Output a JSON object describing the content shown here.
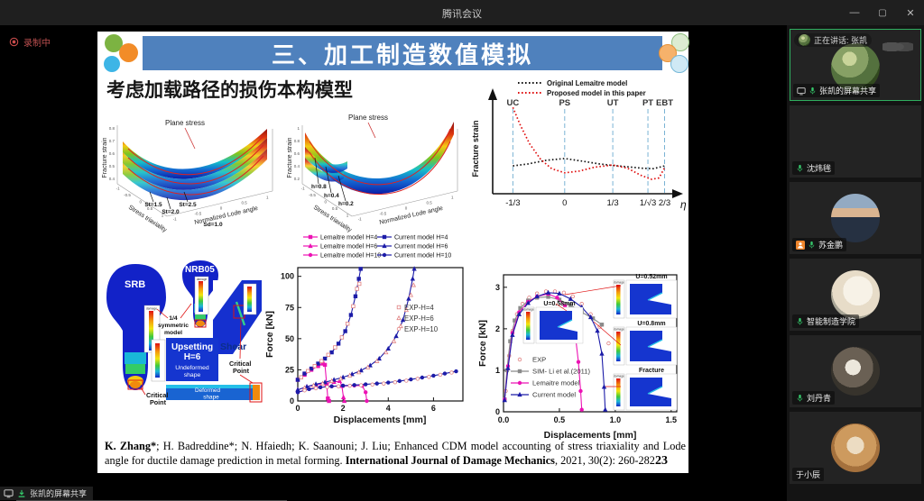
{
  "window": {
    "title": "腾讯会议"
  },
  "stage": {
    "recording_label": "录制中",
    "share_label": "张凯的屏幕共享"
  },
  "sidebar": {
    "tiles": [
      {
        "header": "正在讲话: 张凯",
        "footer": "张凯的屏幕共享"
      },
      {
        "name": "沈炜毪"
      },
      {
        "name": "苏金鹏",
        "host": true
      },
      {
        "name": "智能制造学院"
      },
      {
        "name": "刘丹青"
      },
      {
        "name": "于小辰"
      }
    ]
  },
  "slide": {
    "banner_title": "三、加工制造数值模拟",
    "subtitle": "考虑加载路径的损伤本构模型",
    "page_number": "23",
    "citation": {
      "authors_bold": "K. Zhang*",
      "middle": "; H. Badreddine*; N. Hfaiedh; K. Saanouni; J. Liu; Enhanced CDM model accounting of stress triaxiality and Lode angle for ductile damage prediction in metal forming. ",
      "journal_bold": "International Journal of Damage Mechanics",
      "tail": ", 2021, 30(2): 260-282"
    },
    "surfaces": {
      "left": {
        "zlabel": "Fracture strain",
        "xlabel": "Stress triaxiality",
        "ylabel": "Normalized Lode angle",
        "annotation": "Plane stress",
        "zticks": [
          "0.8",
          "0.7",
          "0.6",
          "0.5",
          "0.4"
        ],
        "xticks": [
          "-1",
          "-0.5",
          "0",
          "0.5",
          "1"
        ],
        "yticks": [
          "-1",
          "-0.5",
          "0",
          "0.5",
          "1"
        ],
        "tags": [
          "St=1.5",
          "St=2.0",
          "St=2.5"
        ],
        "bottom_tag": "Sd=1.0"
      },
      "right": {
        "zlabel": "Fracture strain",
        "xlabel": "Stress triaxiality",
        "ylabel": "Normalized Lode angle",
        "annotation": "Plane stress",
        "zticks": [
          "1",
          "0.8",
          "0.6",
          "0.4",
          "0.2"
        ],
        "xticks": [
          "-1",
          "-0.5",
          "0",
          "0.5",
          "1"
        ],
        "yticks": [
          "-1",
          "-0.5",
          "0",
          "0.5",
          "1"
        ],
        "tags": [
          "h=0.8",
          "h=0.4",
          "h=0.2"
        ]
      }
    },
    "specimens": {
      "srb": "SRB",
      "nrb": "NRB05",
      "shear": "Shear",
      "sym_model": [
        "1/4",
        "symmetric",
        "model"
      ],
      "upsetting": [
        "Upsetting",
        "H=6"
      ],
      "undeformed": [
        "Undeformed",
        "shape"
      ],
      "deformed": [
        "Deformed",
        "shape"
      ],
      "critical": [
        "Critical",
        "Point"
      ],
      "damage_label": "damage"
    }
  },
  "chart_data": [
    {
      "id": "fs",
      "type": "line",
      "ylabel": "Fracture strain",
      "xlabel": "η",
      "legend_position": "top",
      "guides": [
        {
          "label": "UC",
          "tick": "-1/3",
          "x": 0.08
        },
        {
          "label": "PS",
          "tick": "0",
          "x": 0.36
        },
        {
          "label": "UT",
          "tick": "1/3",
          "x": 0.62
        },
        {
          "label": "PT",
          "tick": "1/√3",
          "x": 0.81
        },
        {
          "label": "EBT",
          "tick": "2/3",
          "x": 0.9
        }
      ],
      "series": [
        {
          "name": "Original Lemaitre model",
          "color": "#161616",
          "points": [
            [
              0.08,
              0.3
            ],
            [
              0.16,
              0.32
            ],
            [
              0.26,
              0.36
            ],
            [
              0.36,
              0.38
            ],
            [
              0.46,
              0.35
            ],
            [
              0.55,
              0.32
            ],
            [
              0.62,
              0.305
            ],
            [
              0.7,
              0.29
            ],
            [
              0.78,
              0.275
            ],
            [
              0.84,
              0.27
            ],
            [
              0.9,
              0.3
            ]
          ]
        },
        {
          "name": "Proposed model in this paper",
          "color": "#e01212",
          "points": [
            [
              0.08,
              0.93
            ],
            [
              0.12,
              0.74
            ],
            [
              0.17,
              0.54
            ],
            [
              0.23,
              0.37
            ],
            [
              0.29,
              0.27
            ],
            [
              0.36,
              0.225
            ],
            [
              0.44,
              0.245
            ],
            [
              0.52,
              0.285
            ],
            [
              0.62,
              0.31
            ],
            [
              0.7,
              0.275
            ],
            [
              0.77,
              0.2
            ],
            [
              0.83,
              0.155
            ],
            [
              0.87,
              0.17
            ],
            [
              0.9,
              0.28
            ]
          ]
        }
      ]
    },
    {
      "id": "fd1",
      "type": "line",
      "xlabel": "Displacements [mm]",
      "ylabel": "Force [kN]",
      "xlim": [
        0,
        7.3
      ],
      "ylim": [
        0,
        107
      ],
      "xticks": [
        0,
        2,
        4,
        6
      ],
      "yticks": [
        0,
        25,
        50,
        75,
        100
      ],
      "series": [
        {
          "name": "Lemaitre model H=4",
          "color": "#ec13b4",
          "marker": "s",
          "points": [
            [
              0,
              17
            ],
            [
              0.3,
              21
            ],
            [
              0.6,
              25
            ],
            [
              0.9,
              28
            ],
            [
              1.1,
              30
            ],
            [
              1.2,
              29
            ],
            [
              1.28,
              13
            ],
            [
              1.33,
              2
            ],
            [
              1.38,
              0
            ]
          ]
        },
        {
          "name": "Lemaitre model H=6",
          "color": "#ec13b4",
          "marker": "t",
          "points": [
            [
              0,
              9
            ],
            [
              0.4,
              11.5
            ],
            [
              0.8,
              13
            ],
            [
              1.2,
              14.2
            ],
            [
              1.6,
              15.2
            ],
            [
              1.85,
              16
            ],
            [
              1.95,
              12
            ],
            [
              2.02,
              3
            ],
            [
              2.06,
              0
            ]
          ]
        },
        {
          "name": "Lemaitre model H=10",
          "color": "#ec13b4",
          "marker": "c",
          "points": [
            [
              0,
              7
            ],
            [
              0.5,
              9.5
            ],
            [
              1,
              11
            ],
            [
              1.5,
              11.7
            ],
            [
              2,
              12.1
            ],
            [
              2.5,
              12.4
            ],
            [
              2.85,
              12.2
            ],
            [
              3.0,
              7
            ],
            [
              3.05,
              0
            ]
          ]
        },
        {
          "name": "Current model H=4",
          "color": "#1c1ca8",
          "marker": "s",
          "points": [
            [
              0,
              17
            ],
            [
              0.3,
              22
            ],
            [
              0.6,
              26
            ],
            [
              0.9,
              30
            ],
            [
              1.2,
              34
            ],
            [
              1.5,
              39
            ],
            [
              1.8,
              46
            ],
            [
              2.1,
              56
            ],
            [
              2.35,
              69
            ],
            [
              2.55,
              84
            ],
            [
              2.7,
              98
            ],
            [
              2.78,
              106
            ]
          ]
        },
        {
          "name": "Current model H=6",
          "color": "#1c1ca8",
          "marker": "t",
          "points": [
            [
              0,
              9
            ],
            [
              0.4,
              11.5
            ],
            [
              0.8,
              13.5
            ],
            [
              1.2,
              15
            ],
            [
              1.6,
              17
            ],
            [
              2,
              19
            ],
            [
              2.4,
              21.5
            ],
            [
              2.8,
              24.5
            ],
            [
              3.2,
              28.5
            ],
            [
              3.6,
              34
            ],
            [
              4,
              42
            ],
            [
              4.35,
              52
            ],
            [
              4.65,
              65
            ],
            [
              4.9,
              82
            ],
            [
              5.08,
              98
            ],
            [
              5.15,
              106
            ]
          ]
        },
        {
          "name": "Current model H=10",
          "color": "#1c1ca8",
          "marker": "c",
          "points": [
            [
              0,
              7
            ],
            [
              0.5,
              9.5
            ],
            [
              1,
              11
            ],
            [
              1.5,
              11.8
            ],
            [
              2,
              12.3
            ],
            [
              2.5,
              12.8
            ],
            [
              3,
              13.3
            ],
            [
              3.5,
              14
            ],
            [
              4,
              14.8
            ],
            [
              4.5,
              16
            ],
            [
              5,
              17.3
            ],
            [
              5.5,
              18.8
            ],
            [
              6,
              20.3
            ],
            [
              6.5,
              22
            ],
            [
              7,
              23.8
            ]
          ]
        },
        {
          "name": "EXP-H=4",
          "color": "#e08080",
          "marker": "os",
          "scatter": true,
          "points": [
            [
              0.15,
              19
            ],
            [
              0.45,
              24
            ],
            [
              0.75,
              28
            ],
            [
              1.05,
              32
            ],
            [
              1.35,
              37
            ],
            [
              1.65,
              43
            ],
            [
              1.95,
              51
            ],
            [
              2.2,
              62
            ],
            [
              2.45,
              76
            ],
            [
              2.62,
              90
            ],
            [
              2.72,
              94
            ]
          ]
        },
        {
          "name": "EXP-H=6",
          "color": "#e08080",
          "marker": "ot",
          "scatter": true,
          "points": [
            [
              0.3,
              10.5
            ],
            [
              0.7,
              12.5
            ],
            [
              1.1,
              14
            ],
            [
              1.5,
              16
            ],
            [
              1.9,
              18
            ],
            [
              2.3,
              20.5
            ],
            [
              2.7,
              23
            ],
            [
              3.1,
              27
            ],
            [
              3.5,
              32
            ],
            [
              3.9,
              39
            ],
            [
              4.25,
              48
            ],
            [
              4.55,
              60
            ],
            [
              4.8,
              73
            ],
            [
              5,
              85
            ],
            [
              5.12,
              93
            ]
          ]
        },
        {
          "name": "EXP-H=10",
          "color": "#e08080",
          "marker": "oc",
          "scatter": true,
          "points": [
            [
              0.3,
              8.5
            ],
            [
              0.8,
              10.2
            ],
            [
              1.3,
              11.2
            ],
            [
              1.8,
              11.8
            ],
            [
              2.3,
              12.2
            ],
            [
              2.8,
              12.6
            ],
            [
              3.3,
              13.2
            ],
            [
              3.8,
              14
            ],
            [
              4.3,
              15
            ],
            [
              4.8,
              16.3
            ],
            [
              5.3,
              17.8
            ],
            [
              5.8,
              19.3
            ],
            [
              6.3,
              21
            ],
            [
              6.8,
              22.8
            ]
          ]
        }
      ]
    },
    {
      "id": "fd2",
      "type": "line",
      "xlabel": "Displacements [mm]",
      "ylabel": "Force [kN]",
      "xlim": [
        0,
        1.55
      ],
      "ylim": [
        0,
        3.3
      ],
      "xticks": [
        "0.0",
        "0.5",
        "1.0",
        "1.5"
      ],
      "yticks": [
        0,
        1,
        2,
        3
      ],
      "annotations": [
        "U=0.52mm",
        "U=0.58mm",
        "U=0.8mm",
        "Fracture"
      ],
      "damage_label": "damage",
      "series": [
        {
          "name": "EXP",
          "color": "#e08080",
          "marker": "oc",
          "scatter": true,
          "points": [
            [
              0.02,
              0.5
            ],
            [
              0.05,
              1.35
            ],
            [
              0.08,
              1.95
            ],
            [
              0.12,
              2.35
            ],
            [
              0.17,
              2.6
            ],
            [
              0.23,
              2.75
            ],
            [
              0.3,
              2.85
            ],
            [
              0.38,
              2.9
            ],
            [
              0.46,
              2.9
            ],
            [
              0.54,
              2.87
            ],
            [
              0.62,
              2.78
            ],
            [
              0.7,
              2.6
            ],
            [
              0.78,
              2.35
            ],
            [
              0.86,
              2.05
            ],
            [
              0.94,
              1.65
            ]
          ]
        },
        {
          "name": "SIM- Li et al.(2011)",
          "color": "#8a8a8a",
          "marker": "s",
          "points": [
            [
              0.01,
              0.3
            ],
            [
              0.03,
              1.0
            ],
            [
              0.06,
              1.7
            ],
            [
              0.1,
              2.2
            ],
            [
              0.15,
              2.5
            ],
            [
              0.22,
              2.68
            ],
            [
              0.3,
              2.75
            ],
            [
              0.4,
              2.77
            ],
            [
              0.5,
              2.7
            ],
            [
              0.6,
              2.57
            ],
            [
              0.7,
              2.4
            ],
            [
              0.8,
              2.25
            ],
            [
              0.88,
              2.1
            ]
          ]
        },
        {
          "name": "Lemaitre model",
          "color": "#ec13b4",
          "marker": "c",
          "points": [
            [
              0.01,
              0.3
            ],
            [
              0.04,
              1.1
            ],
            [
              0.08,
              1.9
            ],
            [
              0.14,
              2.4
            ],
            [
              0.22,
              2.65
            ],
            [
              0.3,
              2.78
            ],
            [
              0.4,
              2.84
            ],
            [
              0.48,
              2.75
            ],
            [
              0.55,
              2.55
            ],
            [
              0.6,
              2.3
            ],
            [
              0.64,
              1.9
            ],
            [
              0.67,
              1.2
            ],
            [
              0.69,
              0.5
            ],
            [
              0.7,
              0.05
            ]
          ]
        },
        {
          "name": "Current model",
          "color": "#1c1ca8",
          "marker": "t",
          "points": [
            [
              0.01,
              0.28
            ],
            [
              0.04,
              1.05
            ],
            [
              0.08,
              1.85
            ],
            [
              0.14,
              2.35
            ],
            [
              0.22,
              2.62
            ],
            [
              0.3,
              2.78
            ],
            [
              0.4,
              2.87
            ],
            [
              0.5,
              2.85
            ],
            [
              0.6,
              2.72
            ],
            [
              0.7,
              2.52
            ],
            [
              0.78,
              2.28
            ],
            [
              0.84,
              1.95
            ],
            [
              0.88,
              1.4
            ],
            [
              0.9,
              0.6
            ],
            [
              0.91,
              0.05
            ]
          ]
        }
      ]
    }
  ]
}
